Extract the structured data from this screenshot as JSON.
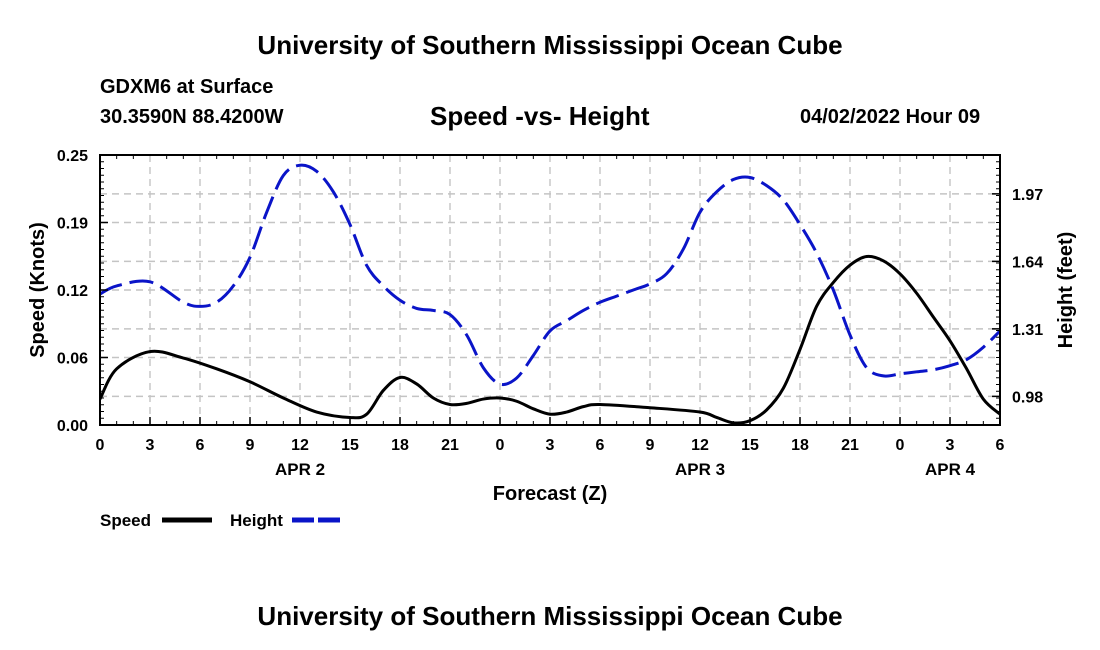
{
  "header": {
    "title": "University of Southern Mississippi Ocean Cube",
    "station": "GDXM6 at Surface",
    "location": "30.3590N  88.4200W",
    "datetime": "04/02/2022 Hour 09"
  },
  "footer": {
    "title": "University of Southern Mississippi Ocean Cube"
  },
  "chart_data": {
    "type": "line",
    "title": "Speed -vs- Height",
    "xlabel": "Forecast (Z)",
    "ylabel_left": "Speed (Knots)",
    "ylabel_right": "Height (feet)",
    "x_ticks": [
      "0",
      "3",
      "6",
      "9",
      "12",
      "15",
      "18",
      "21",
      "0",
      "3",
      "6",
      "9",
      "12",
      "15",
      "18",
      "21",
      "0",
      "3",
      "6"
    ],
    "date_labels": [
      {
        "label": "APR 2",
        "x_hour": 12
      },
      {
        "label": "APR 3",
        "x_hour": 36
      },
      {
        "label": "APR 4",
        "x_hour": 51
      }
    ],
    "xlim": [
      0,
      54
    ],
    "y_left": {
      "lim": [
        0,
        0.25
      ],
      "ticks": [
        "0.00",
        "0.06",
        "0.12",
        "0.19",
        "0.25"
      ],
      "tick_values": [
        0,
        0.0625,
        0.125,
        0.1875,
        0.25
      ]
    },
    "y_right": {
      "lim": [
        0.84,
        2.16
      ],
      "ticks": [
        "0.98",
        "1.31",
        "1.64",
        "1.97"
      ],
      "tick_values": [
        0.98,
        1.31,
        1.64,
        1.97
      ]
    },
    "grid": true,
    "series": [
      {
        "name": "Speed",
        "axis": "left",
        "color": "#000000",
        "style": "solid",
        "x": [
          0,
          1,
          3,
          5,
          7,
          9,
          11,
          13,
          15,
          16,
          17,
          18,
          19,
          20,
          21,
          22,
          23,
          24,
          25,
          26,
          27,
          28,
          29,
          30,
          33,
          36,
          37,
          38,
          39,
          40,
          41,
          42,
          43,
          44,
          45,
          46,
          47,
          48,
          49,
          50,
          51,
          52,
          53,
          54
        ],
        "values": [
          0.024,
          0.052,
          0.068,
          0.062,
          0.052,
          0.04,
          0.025,
          0.012,
          0.007,
          0.01,
          0.032,
          0.044,
          0.038,
          0.025,
          0.019,
          0.02,
          0.024,
          0.025,
          0.022,
          0.015,
          0.01,
          0.012,
          0.017,
          0.019,
          0.016,
          0.012,
          0.007,
          0.002,
          0.004,
          0.014,
          0.034,
          0.07,
          0.11,
          0.132,
          0.148,
          0.156,
          0.152,
          0.14,
          0.122,
          0.1,
          0.078,
          0.052,
          0.024,
          0.01
        ]
      },
      {
        "name": "Height",
        "axis": "right",
        "color": "#0a14c8",
        "style": "dashed",
        "x": [
          0,
          1,
          3,
          5,
          6,
          7,
          8,
          9,
          10,
          11,
          12,
          13,
          14,
          15,
          16,
          17,
          18,
          19,
          20,
          21,
          22,
          23,
          24,
          25,
          26,
          27,
          28,
          29,
          30,
          31,
          32,
          33,
          34,
          35,
          36,
          37,
          38,
          39,
          40,
          41,
          42,
          43,
          44,
          45,
          46,
          47,
          48,
          49,
          50,
          51,
          52,
          53,
          54
        ],
        "values": [
          1.48,
          1.52,
          1.54,
          1.44,
          1.42,
          1.44,
          1.52,
          1.66,
          1.88,
          2.06,
          2.11,
          2.08,
          1.98,
          1.82,
          1.62,
          1.52,
          1.45,
          1.41,
          1.4,
          1.38,
          1.28,
          1.12,
          1.04,
          1.07,
          1.18,
          1.3,
          1.35,
          1.4,
          1.44,
          1.47,
          1.5,
          1.53,
          1.58,
          1.7,
          1.88,
          1.98,
          2.04,
          2.05,
          2.01,
          1.94,
          1.82,
          1.68,
          1.5,
          1.28,
          1.12,
          1.08,
          1.09,
          1.1,
          1.11,
          1.13,
          1.16,
          1.22,
          1.3
        ]
      }
    ],
    "legend": {
      "placement": "bottom-left",
      "entries": [
        "Speed",
        "Height"
      ]
    }
  }
}
